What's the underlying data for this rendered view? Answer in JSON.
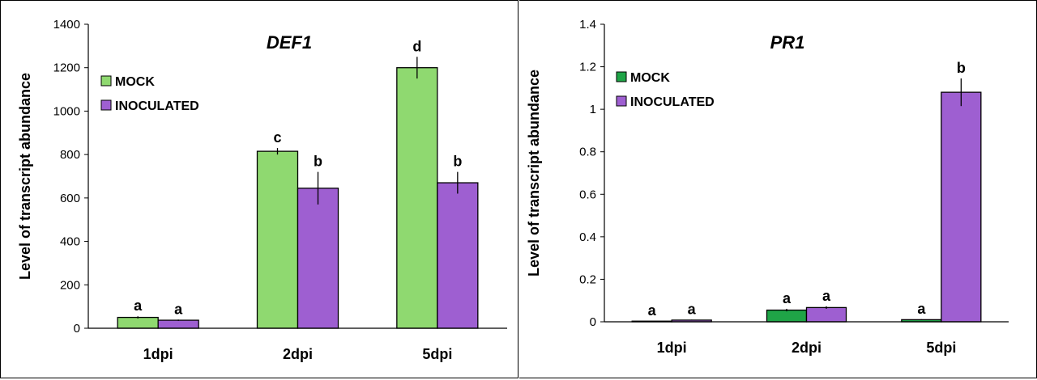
{
  "chart_data": [
    {
      "type": "bar",
      "title": "DEF1",
      "ylabel": "Level of transcript abundance",
      "xlabel": "",
      "categories": [
        "1dpi",
        "2dpi",
        "5dpi"
      ],
      "ylim": [
        0,
        1400
      ],
      "yticks": [
        0,
        200,
        400,
        600,
        800,
        1000,
        1200,
        1400
      ],
      "ytick_labels": [
        "0",
        "200",
        "400",
        "600",
        "800",
        "1000",
        "1200",
        "1400"
      ],
      "legend_position": "top-left",
      "series": [
        {
          "name": "MOCK",
          "color": "#8fd970",
          "values": [
            50,
            815,
            1200
          ],
          "errors": [
            5,
            15,
            50
          ],
          "letters": [
            "a",
            "c",
            "d"
          ]
        },
        {
          "name": "INOCULATED",
          "color": "#9e5fd1",
          "values": [
            37,
            645,
            670
          ],
          "errors": [
            3,
            75,
            50
          ],
          "letters": [
            "a",
            "b",
            "b"
          ]
        }
      ]
    },
    {
      "type": "bar",
      "title": "PR1",
      "ylabel": "Level of transcript abundance",
      "xlabel": "",
      "categories": [
        "1dpi",
        "2dpi",
        "5dpi"
      ],
      "ylim": [
        0,
        1.4
      ],
      "yticks": [
        0,
        0.2,
        0.4,
        0.6,
        0.8,
        1.0,
        1.2,
        1.4
      ],
      "ytick_labels": [
        "0",
        "0.2",
        "0.4",
        "0.6",
        "0.8",
        "1",
        "1.2",
        "1.4"
      ],
      "legend_position": "top-left",
      "series": [
        {
          "name": "MOCK",
          "color": "#1fa447",
          "values": [
            0.003,
            0.055,
            0.01
          ],
          "errors": [
            0.001,
            0.006,
            0.002
          ],
          "letters": [
            "a",
            "a",
            "a"
          ]
        },
        {
          "name": "INOCULATED",
          "color": "#9e5fd1",
          "values": [
            0.008,
            0.067,
            1.08
          ],
          "errors": [
            0.002,
            0.006,
            0.065
          ],
          "letters": [
            "a",
            "a",
            "b"
          ]
        }
      ]
    }
  ]
}
